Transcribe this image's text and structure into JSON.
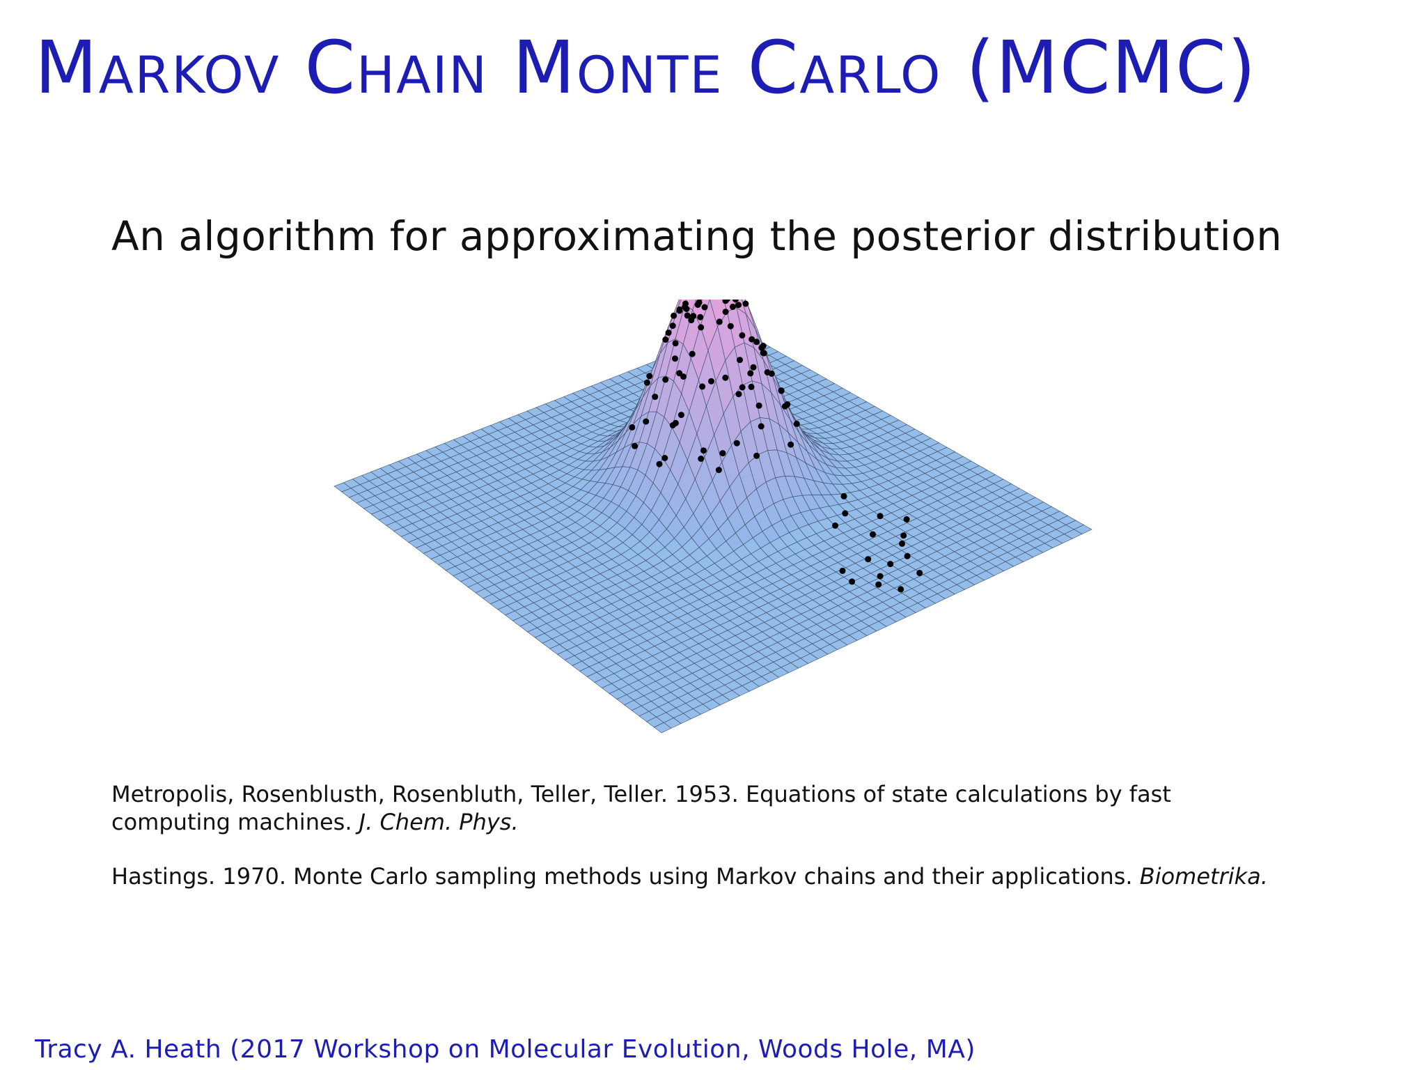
{
  "slide": {
    "title": "Markov Chain Monte Carlo (MCMC)",
    "subtitle": "An algorithm for approximating the posterior distribution",
    "figure": {
      "surface_colors": [
        "#8fb8ea",
        "#c9a8e0",
        "#f1e6b8"
      ],
      "point_color": "#000000"
    },
    "references": [
      {
        "text": "Metropolis, Rosenblusth, Rosenbluth, Teller, Teller. 1953. Equations of state calculations by fast computing machines.",
        "journal": "J. Chem. Phys."
      },
      {
        "text": "Hastings. 1970. Monte Carlo sampling methods using Markov chains and their applications.",
        "journal": "Biometrika."
      }
    ],
    "footer": "Tracy A. Heath (2017 Workshop on Molecular Evolution, Woods Hole, MA)"
  }
}
